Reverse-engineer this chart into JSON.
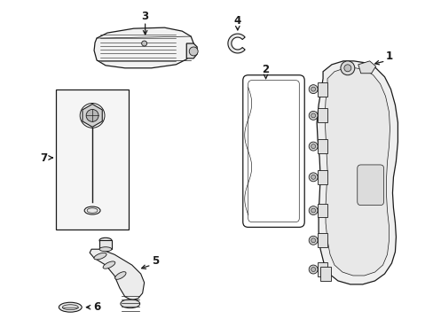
{
  "background_color": "#ffffff",
  "line_color": "#1a1a1a",
  "figsize": [
    4.89,
    3.6
  ],
  "dpi": 100,
  "label_fontsize": 8.5
}
